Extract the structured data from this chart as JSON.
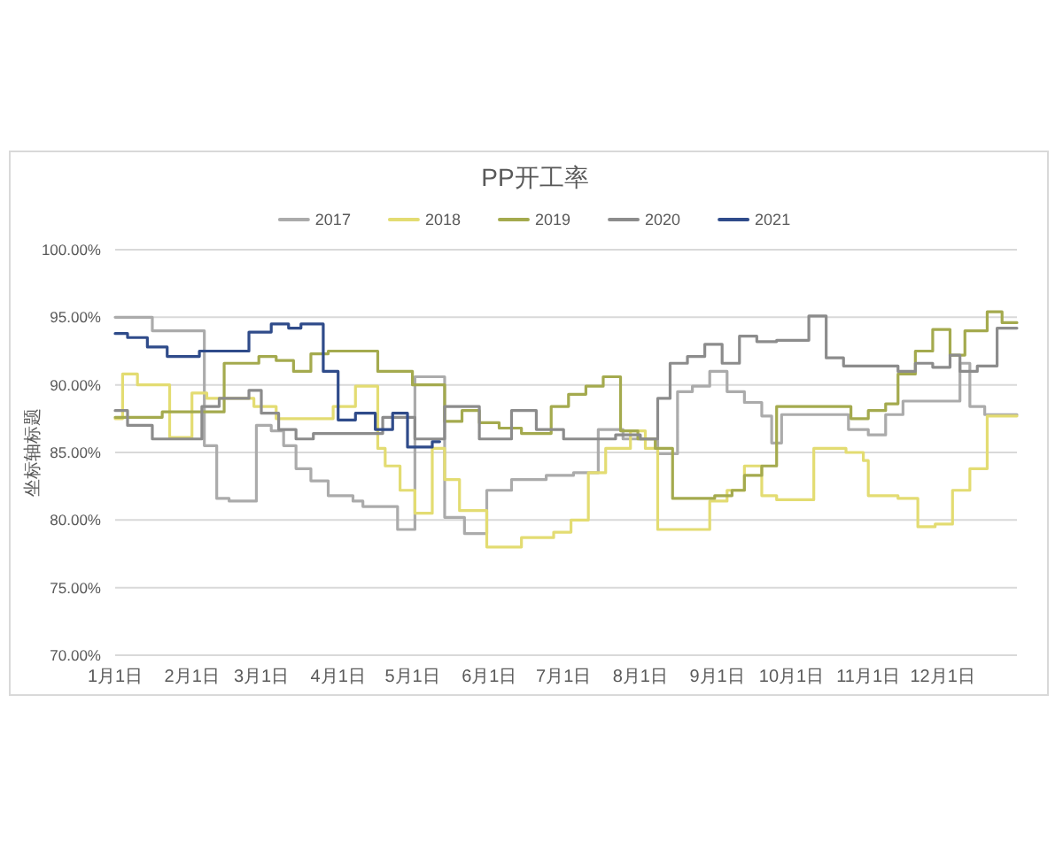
{
  "chart_data": {
    "type": "step",
    "title": "PP开工率",
    "ylabel": "坐标轴标题",
    "legend": "top",
    "grid": "y",
    "xlim": [
      "--01-01",
      "--12-31"
    ],
    "xticks": [
      {
        "value": "--01-01",
        "label": "1月1日"
      },
      {
        "value": "--02-01",
        "label": "2月1日"
      },
      {
        "value": "--03-01",
        "label": "3月1日"
      },
      {
        "value": "--04-01",
        "label": "4月1日"
      },
      {
        "value": "--05-01",
        "label": "5月1日"
      },
      {
        "value": "--06-01",
        "label": "6月1日"
      },
      {
        "value": "--07-01",
        "label": "7月1日"
      },
      {
        "value": "--08-01",
        "label": "8月1日"
      },
      {
        "value": "--09-01",
        "label": "9月1日"
      },
      {
        "value": "--10-01",
        "label": "10月1日"
      },
      {
        "value": "--11-01",
        "label": "11月1日"
      },
      {
        "value": "--12-01",
        "label": "12月1日"
      }
    ],
    "ylim": [
      70,
      100
    ],
    "yticks": [
      {
        "value": 70,
        "label": "70.00%"
      },
      {
        "value": 75,
        "label": "75.00%"
      },
      {
        "value": 80,
        "label": "80.00%"
      },
      {
        "value": 85,
        "label": "85.00%"
      },
      {
        "value": 90,
        "label": "90.00%"
      },
      {
        "value": 95,
        "label": "95.00%"
      },
      {
        "value": 100,
        "label": "100.00%"
      }
    ],
    "series": [
      {
        "name": "2017",
        "color": "#ababab",
        "x": [
          "--01-01",
          "--01-16",
          "--02-06",
          "--02-11",
          "--02-16",
          "--02-27",
          "--03-05",
          "--03-10",
          "--03-15",
          "--03-21",
          "--03-28",
          "--04-07",
          "--04-11",
          "--04-25",
          "--05-02",
          "--05-14",
          "--05-22",
          "--05-31",
          "--06-10",
          "--06-24",
          "--07-05",
          "--07-15",
          "--07-25",
          "--08-08",
          "--08-16",
          "--08-22",
          "--08-29",
          "--09-05",
          "--09-12",
          "--09-19",
          "--09-23",
          "--09-27",
          "--10-24",
          "--11-01",
          "--11-08",
          "--11-15",
          "--12-08",
          "--12-12",
          "--12-18",
          "--12-31"
        ],
        "values": [
          95.0,
          94.0,
          85.5,
          81.6,
          81.4,
          87.0,
          86.6,
          85.5,
          83.8,
          82.9,
          81.8,
          81.4,
          81.0,
          79.3,
          90.6,
          80.2,
          79.0,
          82.2,
          83.0,
          83.3,
          83.5,
          86.7,
          86.0,
          84.9,
          89.5,
          89.9,
          91.0,
          89.5,
          88.7,
          87.7,
          85.7,
          87.8,
          86.7,
          86.3,
          87.8,
          88.8,
          91.6,
          88.4,
          87.8,
          87.8
        ]
      },
      {
        "name": "2018",
        "color": "#e3dc72",
        "x": [
          "--01-01",
          "--01-04",
          "--01-10",
          "--01-23",
          "--02-01",
          "--02-07",
          "--02-26",
          "--03-07",
          "--03-30",
          "--04-08",
          "--04-17",
          "--04-20",
          "--04-26",
          "--05-02",
          "--05-09",
          "--05-14",
          "--05-20",
          "--05-31",
          "--06-14",
          "--06-27",
          "--07-04",
          "--07-11",
          "--07-18",
          "--07-28",
          "--08-03",
          "--08-08",
          "--08-29",
          "--09-05",
          "--09-12",
          "--09-19",
          "--09-25",
          "--10-10",
          "--10-23",
          "--10-30",
          "--11-01",
          "--11-13",
          "--11-21",
          "--11-28",
          "--12-05",
          "--12-12",
          "--12-19",
          "--12-31"
        ],
        "values": [
          87.5,
          90.8,
          90.0,
          86.1,
          89.4,
          89.0,
          88.4,
          87.5,
          88.4,
          89.9,
          85.3,
          84.0,
          82.2,
          80.5,
          85.3,
          83.0,
          80.7,
          78.0,
          78.7,
          79.1,
          80.0,
          83.5,
          85.3,
          86.6,
          85.3,
          79.3,
          81.4,
          82.2,
          84.0,
          81.8,
          81.5,
          85.3,
          85.0,
          84.4,
          81.8,
          81.6,
          79.5,
          79.7,
          82.2,
          83.8,
          87.7,
          87.7
        ]
      },
      {
        "name": "2019",
        "color": "#a4aa4e",
        "x": [
          "--01-01",
          "--01-20",
          "--02-14",
          "--02-28",
          "--03-07",
          "--03-14",
          "--03-21",
          "--03-28",
          "--04-17",
          "--05-01",
          "--05-14",
          "--05-21",
          "--05-28",
          "--06-05",
          "--06-14",
          "--06-26",
          "--07-03",
          "--07-10",
          "--07-17",
          "--07-24",
          "--07-31",
          "--08-07",
          "--08-14",
          "--08-31",
          "--09-07",
          "--09-12",
          "--09-19",
          "--09-25",
          "--10-25",
          "--11-01",
          "--11-08",
          "--11-13",
          "--11-20",
          "--11-27",
          "--12-04",
          "--12-10",
          "--12-19",
          "--12-25",
          "--12-31"
        ],
        "values": [
          87.6,
          88.0,
          91.6,
          92.1,
          91.8,
          91.0,
          92.3,
          92.5,
          91.0,
          90.0,
          87.3,
          88.1,
          87.2,
          86.8,
          86.4,
          88.4,
          89.3,
          89.9,
          90.6,
          86.6,
          86.0,
          85.3,
          81.6,
          81.8,
          82.2,
          83.3,
          84.0,
          88.4,
          87.5,
          88.1,
          88.6,
          90.8,
          92.5,
          94.1,
          92.2,
          94.0,
          95.4,
          94.6,
          94.6
        ]
      },
      {
        "name": "2020",
        "color": "#8c8c8c",
        "x": [
          "--01-01",
          "--01-06",
          "--01-16",
          "--02-05",
          "--02-12",
          "--02-24",
          "--03-01",
          "--03-08",
          "--03-15",
          "--03-22",
          "--04-19",
          "--05-02",
          "--05-14",
          "--05-28",
          "--06-10",
          "--06-20",
          "--07-01",
          "--07-22",
          "--08-01",
          "--08-08",
          "--08-13",
          "--08-20",
          "--08-27",
          "--09-03",
          "--09-10",
          "--09-17",
          "--09-25",
          "--10-08",
          "--10-15",
          "--10-22",
          "--11-13",
          "--11-20",
          "--11-27",
          "--12-04",
          "--12-08",
          "--12-15",
          "--12-23",
          "--12-31"
        ],
        "values": [
          88.1,
          87.0,
          86.0,
          88.4,
          89.0,
          89.6,
          87.9,
          86.7,
          86.0,
          86.4,
          87.6,
          86.0,
          88.4,
          86.0,
          88.1,
          86.7,
          86.0,
          86.3,
          86.0,
          89.0,
          91.6,
          92.1,
          93.0,
          91.6,
          93.6,
          93.2,
          93.3,
          95.1,
          92.0,
          91.4,
          91.0,
          91.6,
          91.3,
          92.2,
          91.0,
          91.4,
          94.2,
          94.2
        ]
      },
      {
        "name": "2021",
        "color": "#2f4b8a",
        "x": [
          "--01-01",
          "--01-06",
          "--01-14",
          "--01-22",
          "--02-04",
          "--02-24",
          "--03-05",
          "--03-12",
          "--03-17",
          "--03-26",
          "--04-01",
          "--04-08",
          "--04-16",
          "--04-23",
          "--04-29",
          "--05-09",
          "--05-12"
        ],
        "values": [
          93.8,
          93.5,
          92.8,
          92.1,
          92.5,
          93.9,
          94.5,
          94.2,
          94.5,
          91.0,
          87.4,
          87.9,
          86.7,
          87.9,
          85.4,
          85.8,
          85.8
        ]
      }
    ]
  }
}
